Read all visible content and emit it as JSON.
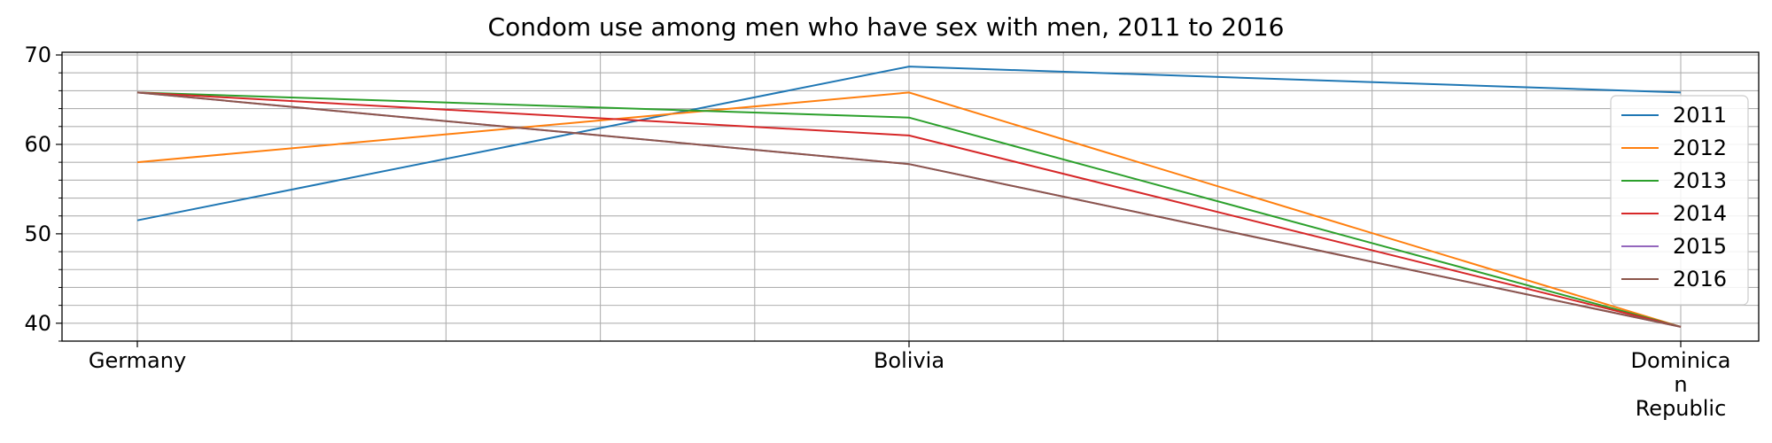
{
  "chart_data": {
    "type": "line",
    "title": "Condom use among men who have sex with men, 2011 to 2016",
    "xlabel": "",
    "ylabel": "",
    "categories": [
      "Germany",
      "Bolivia",
      "Dominican Republic"
    ],
    "category_display_lines": [
      [
        "Germany"
      ],
      [
        "Bolivia"
      ],
      [
        "Dominica",
        "n",
        "Republic"
      ]
    ],
    "ylim": [
      38,
      70.3
    ],
    "yticks": [
      40,
      50,
      60,
      70
    ],
    "grid": true,
    "legend_position": "right",
    "series": [
      {
        "name": "2011",
        "color": "#1f77b4",
        "values": [
          51.5,
          68.7,
          65.8
        ]
      },
      {
        "name": "2012",
        "color": "#ff7f0e",
        "values": [
          58.0,
          65.8,
          39.6
        ]
      },
      {
        "name": "2013",
        "color": "#2ca02c",
        "values": [
          65.8,
          63.0,
          39.6
        ]
      },
      {
        "name": "2014",
        "color": "#d62728",
        "values": [
          65.8,
          61.0,
          39.6
        ]
      },
      {
        "name": "2015",
        "color": "#9467bd",
        "values": [
          65.8,
          57.8,
          39.6
        ]
      },
      {
        "name": "2016",
        "color": "#8c564b",
        "values": [
          65.8,
          57.8,
          39.6
        ]
      }
    ]
  }
}
